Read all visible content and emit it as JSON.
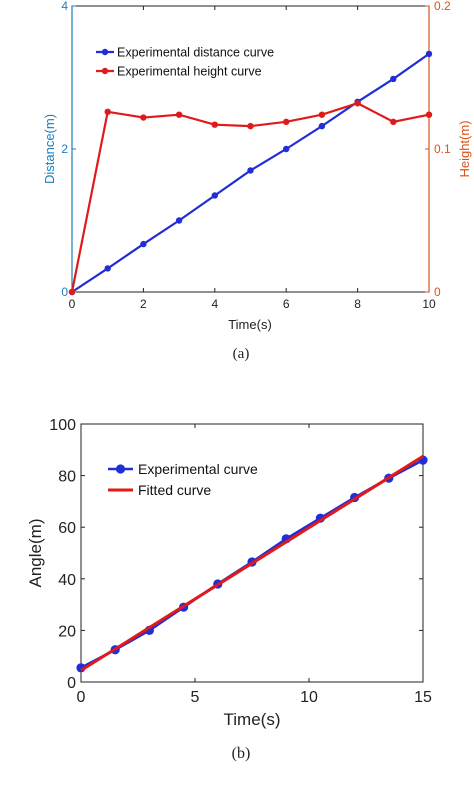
{
  "chart_data": [
    {
      "type": "line",
      "xlabel": "Time(s)",
      "ylabel_left": "Distance(m)",
      "ylabel_right": "Height(m)",
      "xlim": [
        0,
        10
      ],
      "ylim_left": [
        0,
        4
      ],
      "ylim_right": [
        0,
        0.2
      ],
      "xticks": [
        "0",
        "2",
        "4",
        "6",
        "8",
        "10"
      ],
      "yticks_left": [
        "0",
        "2",
        "4"
      ],
      "yticks_right": [
        "0",
        "0.1",
        "0.2"
      ],
      "left_axis_color": "#1a7fc1",
      "right_axis_color": "#d95319",
      "grid": false,
      "legend_position": "top-left",
      "caption": "(a)",
      "series": [
        {
          "name": "Experimental distance curve",
          "axis": "left",
          "color": "#1f2ed6",
          "x": [
            0,
            1,
            2,
            3,
            4,
            5,
            6,
            7,
            8,
            9,
            10
          ],
          "values": [
            0,
            0.33,
            0.67,
            1.0,
            1.35,
            1.7,
            2.0,
            2.32,
            2.66,
            2.98,
            3.33
          ]
        },
        {
          "name": "Experimental height curve",
          "axis": "right",
          "color": "#e01a1a",
          "x": [
            0,
            1,
            2,
            3,
            4,
            5,
            6,
            7,
            8,
            9,
            10
          ],
          "values": [
            0,
            0.126,
            0.122,
            0.124,
            0.117,
            0.116,
            0.119,
            0.124,
            0.132,
            0.119,
            0.124
          ]
        }
      ]
    },
    {
      "type": "line",
      "xlabel": "Time(s)",
      "ylabel": "Angle(m)",
      "xlim": [
        0,
        15
      ],
      "ylim": [
        0,
        100
      ],
      "xticks": [
        "0",
        "5",
        "10",
        "15"
      ],
      "yticks": [
        "0",
        "20",
        "40",
        "60",
        "80",
        "100"
      ],
      "grid": false,
      "legend_position": "top-left",
      "caption": "(b)",
      "series": [
        {
          "name": "Experimental curve",
          "color": "#1f2ed6",
          "x": [
            0,
            1.5,
            3,
            4.5,
            6,
            7.5,
            9,
            10.5,
            12,
            13.5,
            15
          ],
          "values": [
            5.5,
            12.5,
            20,
            29,
            38,
            46.5,
            55.5,
            63.5,
            71.5,
            79,
            86
          ]
        },
        {
          "name": "Fitted curve",
          "color": "#e01a1a",
          "x": [
            0,
            15
          ],
          "values": [
            4.5,
            87.5
          ]
        }
      ]
    }
  ]
}
